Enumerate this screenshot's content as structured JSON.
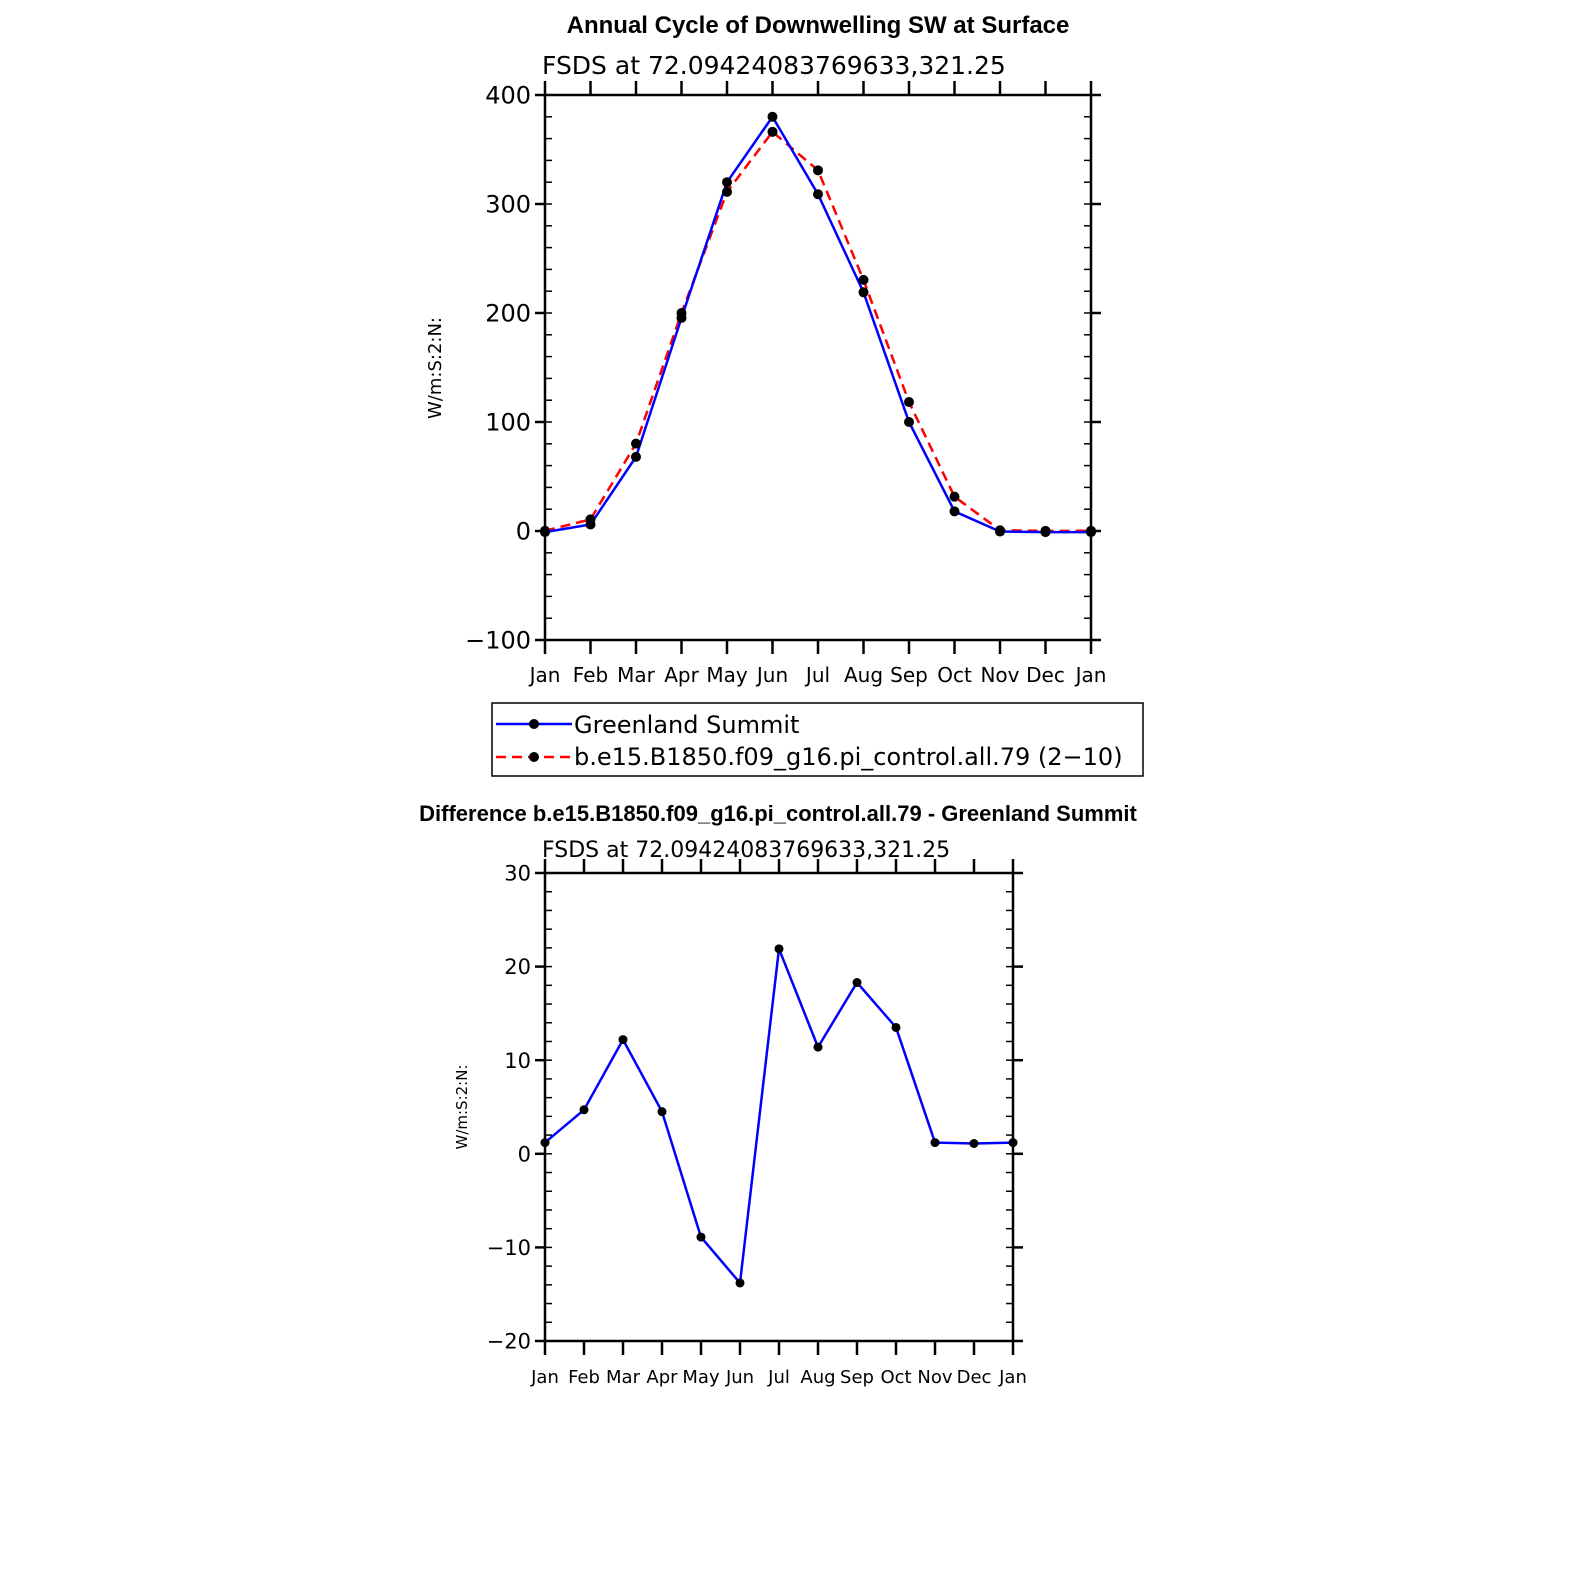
{
  "chart_data": [
    {
      "type": "line",
      "title": "Annual Cycle of Downwelling SW at Surface",
      "subtitle": "FSDS at 72.09424083769633,321.25",
      "ylabel": "W/m:S:2:N:",
      "xlabel": "",
      "categories": [
        "Jan",
        "Feb",
        "Mar",
        "Apr",
        "May",
        "Jun",
        "Jul",
        "Aug",
        "Sep",
        "Oct",
        "Nov",
        "Dec",
        "Jan"
      ],
      "ylim": [
        -100,
        400
      ],
      "yticks": [
        -100,
        0,
        100,
        200,
        300,
        400
      ],
      "ytick_labels": [
        "−100",
        "0",
        "100",
        "200",
        "300",
        "400"
      ],
      "grid": false,
      "legend": "below",
      "series": [
        {
          "name": "Greenland Summit",
          "color": "#0000ff",
          "style": "solid",
          "values": [
            -1,
            6,
            68,
            195.5,
            320,
            380,
            309,
            219,
            100,
            18,
            -0.5,
            -1,
            -1
          ]
        },
        {
          "name": "b.e15.B1850.f09_g16.pi_control.all.79 (2−10)",
          "color": "#ff0000",
          "style": "dashed",
          "values": [
            0.2,
            10.7,
            80.2,
            200,
            311.1,
            366.2,
            330.9,
            230.4,
            118.3,
            31.5,
            0.7,
            0.1,
            0.2
          ]
        }
      ]
    },
    {
      "type": "line",
      "title": "Difference b.e15.B1850.f09_g16.pi_control.all.79 - Greenland Summit",
      "subtitle": "FSDS at 72.09424083769633,321.25",
      "ylabel": "W/m:S:2:N:",
      "xlabel": "",
      "categories": [
        "Jan",
        "Feb",
        "Mar",
        "Apr",
        "May",
        "Jun",
        "Jul",
        "Aug",
        "Sep",
        "Oct",
        "Nov",
        "Dec",
        "Jan"
      ],
      "ylim": [
        -20,
        30
      ],
      "yticks": [
        -20,
        -10,
        0,
        10,
        20,
        30
      ],
      "ytick_labels": [
        "−20",
        "−10",
        "0",
        "10",
        "20",
        "30"
      ],
      "grid": false,
      "series": [
        {
          "color": "#0000ff",
          "style": "solid",
          "values": [
            1.2,
            4.7,
            12.2,
            4.5,
            -8.9,
            -13.8,
            21.9,
            11.4,
            18.3,
            13.5,
            1.2,
            1.1,
            1.2
          ]
        }
      ]
    }
  ]
}
